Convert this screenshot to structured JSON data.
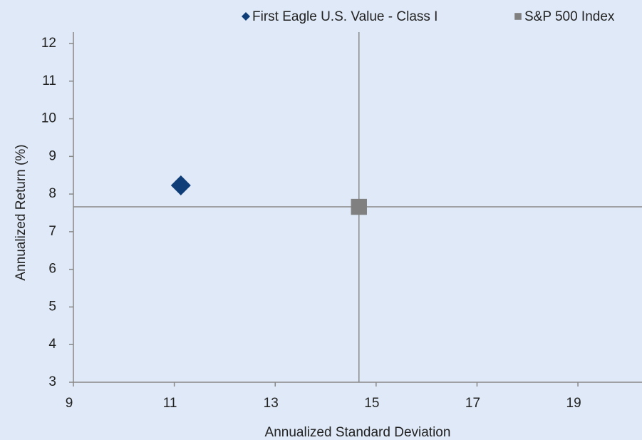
{
  "chart_data": {
    "type": "scatter",
    "xlabel": "Annualized Standard Deviation",
    "ylabel": "Annualized Return (%)",
    "series": [
      {
        "name": "First Eagle U.S. Value - Class I",
        "color": "#0f3d78",
        "marker": "diamond",
        "x": [
          11.13
        ],
        "values": [
          8.23
        ]
      },
      {
        "name": "S&P 500 Index",
        "color": "#808080",
        "marker": "square",
        "x": [
          14.66
        ],
        "values": [
          7.66
        ]
      }
    ],
    "crosshair_series": 1,
    "xlim": [
      9,
      20.27
    ],
    "xticks": [
      9,
      11,
      13,
      15,
      17,
      19
    ],
    "ylim": [
      3,
      12
    ],
    "yticks": [
      3,
      4,
      5,
      6,
      7,
      8,
      9,
      10,
      11,
      12
    ],
    "grid": false,
    "legend": "top"
  }
}
